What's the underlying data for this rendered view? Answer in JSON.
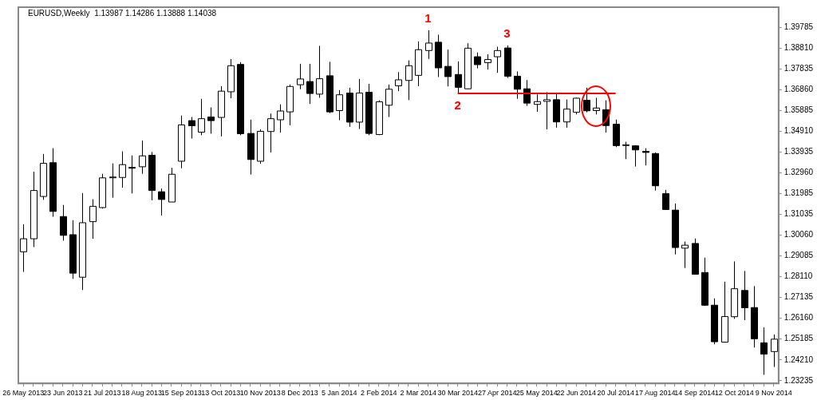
{
  "chart_data": {
    "type": "candlestick",
    "title": "EURUSD,Weekly  1.13987 1.14286 1.13888 1.14038",
    "colors": [
      "#ffffff",
      "#ffffff",
      "#ffffff",
      "#000000",
      "#000000",
      "#000000",
      "#ffffff",
      "#ffffff",
      "#ffffff",
      "#ffffff",
      "#ffffff",
      "#000000",
      "#ffffff",
      "#000000",
      "#000000",
      "#ffffff",
      "#ffffff",
      "#000000",
      "#ffffff",
      "#000000",
      "#ffffff",
      "#ffffff",
      "#000000",
      "#000000",
      "#ffffff",
      "#ffffff",
      "#ffffff",
      "#ffffff",
      "#ffffff",
      "#000000",
      "#ffffff",
      "#000000",
      "#ffffff",
      "#000000",
      "#ffffff",
      "#000000",
      "#ffffff",
      "#ffffff",
      "#ffffff",
      "#ffffff",
      "#ffffff",
      "#ffffff",
      "#000000",
      "#000000",
      "#000000",
      "#ffffff",
      "#000000",
      "#ffffff",
      "#ffffff",
      "#000000",
      "#000000",
      "#000000",
      "#ffffff",
      "#ffffff",
      "#000000",
      "#ffffff",
      "#ffffff",
      "#000000",
      "#ffffff",
      "#000000",
      "#000000",
      "#ffffff",
      "#000000",
      "#000000",
      "#000000",
      "#000000",
      "#000000",
      "#ffffff",
      "#000000",
      "#000000",
      "#000000",
      "#ffffff",
      "#ffffff",
      "#000000",
      "#000000",
      "#000000",
      "#ffffff"
    ],
    "legend": false,
    "grid": false,
    "categories": [
      "26 May 2013",
      null,
      null,
      null,
      "23 Jun 2013",
      null,
      null,
      null,
      "21 Jul 2013",
      null,
      null,
      null,
      "18 Aug 2013",
      null,
      null,
      null,
      "15 Sep 2013",
      null,
      null,
      null,
      "13 Oct 2013",
      null,
      null,
      null,
      "10 Nov 2013",
      null,
      null,
      null,
      "8 Dec 2013",
      null,
      null,
      null,
      "5 Jan 2014",
      null,
      null,
      null,
      "2 Feb 2014",
      null,
      null,
      null,
      "2 Mar 2014",
      null,
      null,
      null,
      "30 Mar 2014",
      null,
      null,
      null,
      "27 Apr 2014",
      null,
      null,
      null,
      "25 May 2014",
      null,
      null,
      null,
      "22 Jun 2014",
      null,
      null,
      null,
      "20 Jul 2014",
      null,
      null,
      null,
      "17 Aug 2014",
      null,
      null,
      null,
      "14 Sep 2014",
      null,
      null,
      null,
      "12 Oct 2014",
      null,
      null,
      null,
      "9 Nov 2014"
    ],
    "ohlc": [
      [
        1.2927,
        1.3056,
        1.2833,
        1.2988
      ],
      [
        1.2988,
        1.3302,
        1.2949,
        1.3214
      ],
      [
        1.3186,
        1.3385,
        1.317,
        1.3341
      ],
      [
        1.3344,
        1.3412,
        1.3091,
        1.3116
      ],
      [
        1.3092,
        1.3146,
        1.2979,
        1.3004
      ],
      [
        1.3007,
        1.3075,
        1.28,
        1.2827
      ],
      [
        1.2808,
        1.3202,
        1.2748,
        1.3063
      ],
      [
        1.3068,
        1.3173,
        1.2988,
        1.314
      ],
      [
        1.3134,
        1.3292,
        1.3129,
        1.3273
      ],
      [
        1.3274,
        1.3341,
        1.318,
        1.3277
      ],
      [
        1.3275,
        1.3397,
        1.3227,
        1.3335
      ],
      [
        1.3322,
        1.3378,
        1.32,
        1.3319
      ],
      [
        1.3325,
        1.3448,
        1.3292,
        1.3376
      ],
      [
        1.3379,
        1.3394,
        1.3168,
        1.3214
      ],
      [
        1.3208,
        1.3223,
        1.3097,
        1.3172
      ],
      [
        1.316,
        1.332,
        1.316,
        1.329
      ],
      [
        1.3351,
        1.3565,
        1.3318,
        1.3521
      ],
      [
        1.3541,
        1.3558,
        1.3457,
        1.3517
      ],
      [
        1.3487,
        1.3643,
        1.3473,
        1.355
      ],
      [
        1.3558,
        1.3603,
        1.348,
        1.3541
      ],
      [
        1.3556,
        1.3702,
        1.3467,
        1.3679
      ],
      [
        1.3676,
        1.3829,
        1.3646,
        1.3798
      ],
      [
        1.3804,
        1.3815,
        1.3473,
        1.348
      ],
      [
        1.3481,
        1.3546,
        1.3289,
        1.3359
      ],
      [
        1.3351,
        1.35,
        1.3339,
        1.3491
      ],
      [
        1.349,
        1.3574,
        1.3392,
        1.355
      ],
      [
        1.3545,
        1.3617,
        1.3485,
        1.3586
      ],
      [
        1.3582,
        1.371,
        1.3519,
        1.3701
      ],
      [
        1.3709,
        1.3807,
        1.3688,
        1.3736
      ],
      [
        1.3724,
        1.3807,
        1.3619,
        1.3668
      ],
      [
        1.3665,
        1.3891,
        1.3648,
        1.3737
      ],
      [
        1.3751,
        1.3816,
        1.3576,
        1.3582
      ],
      [
        1.3588,
        1.3684,
        1.3543,
        1.3662
      ],
      [
        1.367,
        1.3695,
        1.3512,
        1.3534
      ],
      [
        1.3534,
        1.3736,
        1.3502,
        1.367
      ],
      [
        1.3674,
        1.3713,
        1.3473,
        1.3481
      ],
      [
        1.3476,
        1.3636,
        1.3473,
        1.3629
      ],
      [
        1.3613,
        1.371,
        1.3558,
        1.3688
      ],
      [
        1.3704,
        1.3768,
        1.3679,
        1.3732
      ],
      [
        1.3729,
        1.3823,
        1.3637,
        1.3798
      ],
      [
        1.3753,
        1.3912,
        1.3702,
        1.3873
      ],
      [
        1.3869,
        1.3964,
        1.383,
        1.3904
      ],
      [
        1.3908,
        1.3943,
        1.3745,
        1.3788
      ],
      [
        1.3795,
        1.3873,
        1.3701,
        1.3747
      ],
      [
        1.3757,
        1.3818,
        1.3668,
        1.3697
      ],
      [
        1.369,
        1.3903,
        1.369,
        1.388
      ],
      [
        1.384,
        1.386,
        1.3786,
        1.3803
      ],
      [
        1.3812,
        1.3852,
        1.378,
        1.3827
      ],
      [
        1.384,
        1.3887,
        1.3765,
        1.3869
      ],
      [
        1.3881,
        1.3893,
        1.3741,
        1.3749
      ],
      [
        1.3749,
        1.3771,
        1.3643,
        1.3688
      ],
      [
        1.369,
        1.3731,
        1.361,
        1.3623
      ],
      [
        1.3617,
        1.3664,
        1.3582,
        1.363
      ],
      [
        1.3631,
        1.3674,
        1.35,
        1.3639
      ],
      [
        1.3639,
        1.3665,
        1.3508,
        1.3535
      ],
      [
        1.3535,
        1.364,
        1.3508,
        1.3595
      ],
      [
        1.358,
        1.3648,
        1.357,
        1.3646
      ],
      [
        1.3636,
        1.3695,
        1.358,
        1.3587
      ],
      [
        1.3588,
        1.3648,
        1.357,
        1.36
      ],
      [
        1.3592,
        1.3636,
        1.3485,
        1.3518
      ],
      [
        1.3524,
        1.3546,
        1.3417,
        1.3424
      ],
      [
        1.3425,
        1.3442,
        1.3361,
        1.3428
      ],
      [
        1.3423,
        1.3426,
        1.3326,
        1.3404
      ],
      [
        1.3397,
        1.3412,
        1.3331,
        1.3392
      ],
      [
        1.3387,
        1.3392,
        1.3214,
        1.3236
      ],
      [
        1.3199,
        1.3217,
        1.3125,
        1.3125
      ],
      [
        1.3122,
        1.3153,
        1.2915,
        1.2947
      ],
      [
        1.2944,
        1.2975,
        1.2851,
        1.2958
      ],
      [
        1.2966,
        1.2989,
        1.2822,
        1.2822
      ],
      [
        1.283,
        1.29,
        1.2674,
        1.2677
      ],
      [
        1.2677,
        1.2709,
        1.2494,
        1.2506
      ],
      [
        1.2504,
        1.2787,
        1.2504,
        1.2624
      ],
      [
        1.2623,
        1.2882,
        1.2613,
        1.2754
      ],
      [
        1.2746,
        1.2837,
        1.2607,
        1.2665
      ],
      [
        1.2666,
        1.2766,
        1.2479,
        1.252
      ],
      [
        1.2501,
        1.2573,
        1.2351,
        1.2448
      ],
      [
        1.246,
        1.254,
        1.2388,
        1.2518
      ]
    ],
    "series": [
      {
        "type": "line",
        "color": "#ff0000",
        "values": [
          null,
          null,
          null,
          null,
          null,
          null,
          null,
          null,
          null,
          null,
          null,
          null,
          null,
          null,
          null,
          null,
          null,
          null,
          null,
          null,
          null,
          null,
          null,
          null,
          null,
          null,
          null,
          null,
          null,
          null,
          null,
          null,
          null,
          null,
          null,
          null,
          null,
          null,
          null,
          null,
          null,
          null,
          null,
          null,
          1.3668,
          1.3668,
          1.3668,
          1.3668,
          1.3668,
          1.3668,
          1.3668,
          1.3668,
          1.3668,
          1.3668,
          1.3668,
          1.3668,
          1.3668,
          1.3668,
          1.3668,
          1.3668,
          1.3668,
          null,
          null,
          null,
          null,
          null,
          null,
          null,
          null,
          null,
          null,
          null,
          null,
          null,
          null,
          null,
          null
        ]
      }
    ],
    "annotations": [
      "1",
      "2",
      "3"
    ],
    "ylim": [
      1.2311,
      1.4072
    ],
    "yticks": [
      {
        "value": 1.23235,
        "label": "1.23235"
      },
      {
        "value": 1.2421,
        "label": "1.24210"
      },
      {
        "value": 1.25185,
        "label": "1.25185"
      },
      {
        "value": 1.2616,
        "label": "1.26160"
      },
      {
        "value": 1.27135,
        "label": "1.27135"
      },
      {
        "value": 1.2811,
        "label": "1.28110"
      },
      {
        "value": 1.29085,
        "label": "1.29085"
      },
      {
        "value": 1.3006,
        "label": "1.30060"
      },
      {
        "value": 1.31035,
        "label": "1.31035"
      },
      {
        "value": 1.31985,
        "label": "1.31985"
      },
      {
        "value": 1.3296,
        "label": "1.32960"
      },
      {
        "value": 1.33935,
        "label": "1.33935"
      },
      {
        "value": 1.3491,
        "label": "1.34910"
      },
      {
        "value": 1.35885,
        "label": "1.35885"
      },
      {
        "value": 1.3686,
        "label": "1.36860"
      },
      {
        "value": 1.37835,
        "label": "1.37835"
      },
      {
        "value": 1.3881,
        "label": "1.38810"
      },
      {
        "value": 1.39785,
        "label": "1.39785"
      }
    ]
  }
}
